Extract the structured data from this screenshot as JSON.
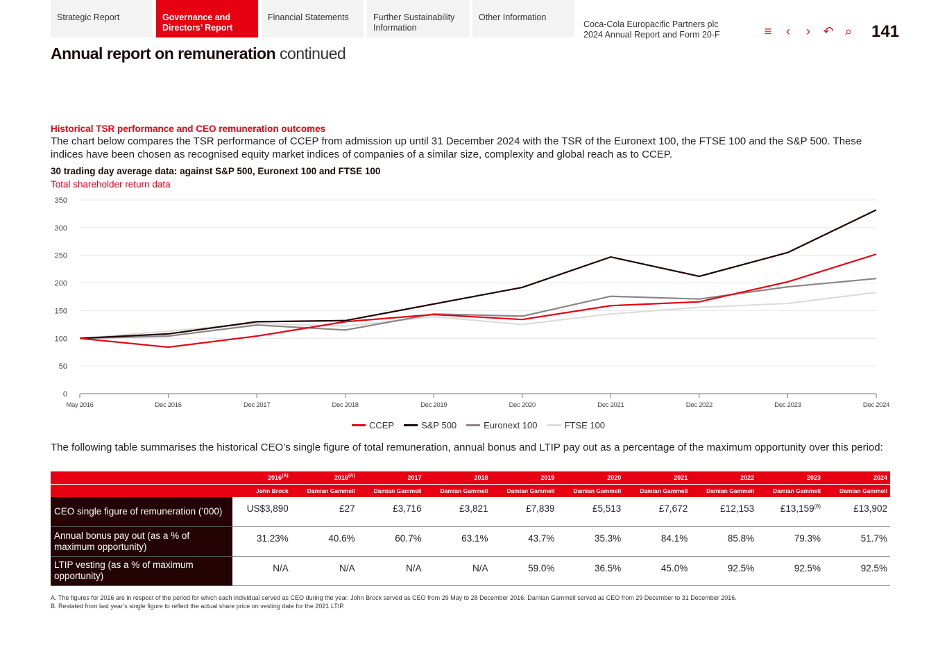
{
  "nav": {
    "tabs": [
      {
        "label": "Strategic Report",
        "active": false
      },
      {
        "label": "Governance and Directors’ Report",
        "active": true
      },
      {
        "label": "Financial Statements",
        "active": false
      },
      {
        "label": "Further Sustainability Information",
        "active": false
      },
      {
        "label": "Other Information",
        "active": false
      }
    ],
    "company_line1": "Coca-Cola Europacific Partners plc",
    "company_line2": "2024 Annual Report and Form 20-F",
    "icons": [
      "menu-icon",
      "chevron-left-icon",
      "chevron-right-icon",
      "undo-icon",
      "search-icon"
    ],
    "page_number": "141"
  },
  "header": {
    "title_bold": "Annual report on remuneration",
    "title_light": "continued"
  },
  "section": {
    "heading": "Historical TSR performance and CEO remuneration outcomes",
    "intro": "The chart below compares the TSR performance of CCEP from admission up until 31 December 2024 with the TSR of the Euronext 100, the FTSE 100 and the S&P 500. These indices have been chosen as recognised equity market indices of companies of a similar size, complexity and global reach as to CCEP."
  },
  "colors": {
    "accent": "#e60012",
    "dark": "#230303"
  },
  "chart_data": {
    "type": "line",
    "title": "30 trading day average data: against S&P 500, Euronext 100 and FTSE 100",
    "subtitle": "Total shareholder return data",
    "categories": [
      "May 2016",
      "Dec 2016",
      "Dec 2017",
      "Dec 2018",
      "Dec 2019",
      "Dec 2020",
      "Dec 2021",
      "Dec 2022",
      "Dec 2023",
      "Dec 2024"
    ],
    "ylim": [
      0,
      350
    ],
    "yticks": [
      0,
      50,
      100,
      150,
      200,
      250,
      300,
      350
    ],
    "grid": true,
    "legend": "bottom",
    "series": [
      {
        "name": "CCEP",
        "color": "#e60012",
        "values": [
          100,
          84,
          104,
          130,
          143,
          134,
          159,
          166,
          202,
          252
        ]
      },
      {
        "name": "S&P 500",
        "color": "#1e0505",
        "values": [
          100,
          108,
          130,
          132,
          162,
          192,
          247,
          212,
          255,
          332
        ]
      },
      {
        "name": "Euronext 100",
        "color": "#8c8484",
        "values": [
          100,
          104,
          124,
          115,
          144,
          140,
          176,
          171,
          193,
          208
        ]
      },
      {
        "name": "FTSE 100",
        "color": "#dcdcdc",
        "values": [
          100,
          113,
          127,
          122,
          139,
          125,
          144,
          156,
          163,
          183
        ]
      }
    ]
  },
  "table": {
    "intro": "The following table summarises the historical CEO’s single figure of total remuneration, annual bonus and LTIP pay out as a percentage of the maximum opportunity over this period:",
    "columns": [
      {
        "year": "2016",
        "note": "(A)",
        "ceo": "John Brock"
      },
      {
        "year": "2016",
        "note": "(A)",
        "ceo": "Damian Gammell"
      },
      {
        "year": "2017",
        "note": "",
        "ceo": "Damian Gammell"
      },
      {
        "year": "2018",
        "note": "",
        "ceo": "Damian Gammell"
      },
      {
        "year": "2019",
        "note": "",
        "ceo": "Damian Gammell"
      },
      {
        "year": "2020",
        "note": "",
        "ceo": "Damian Gammell"
      },
      {
        "year": "2021",
        "note": "",
        "ceo": "Damian Gammell"
      },
      {
        "year": "2022",
        "note": "",
        "ceo": "Damian Gammell"
      },
      {
        "year": "2023",
        "note": "",
        "ceo": "Damian Gammell"
      },
      {
        "year": "2024",
        "note": "",
        "ceo": "Damian Gammell"
      }
    ],
    "rows": [
      {
        "label": "CEO single figure of remuneration (’000)",
        "cells": [
          {
            "v": "US$3,890"
          },
          {
            "v": "£27"
          },
          {
            "v": "£3,716"
          },
          {
            "v": "£3,821"
          },
          {
            "v": "£7,839"
          },
          {
            "v": "£5,513"
          },
          {
            "v": "£7,672"
          },
          {
            "v": "£12,153"
          },
          {
            "v": "£13,159",
            "note": "(B)"
          },
          {
            "v": "£13,902"
          }
        ]
      },
      {
        "label": "Annual bonus pay out (as a % of maximum opportunity)",
        "cells": [
          {
            "v": "31.23%"
          },
          {
            "v": "40.6%"
          },
          {
            "v": "60.7%"
          },
          {
            "v": "63.1%"
          },
          {
            "v": "43.7%"
          },
          {
            "v": "35.3%"
          },
          {
            "v": "84.1%"
          },
          {
            "v": "85.8%"
          },
          {
            "v": "79.3%"
          },
          {
            "v": "51.7%"
          }
        ]
      },
      {
        "label": "LTIP vesting (as a % of maximum opportunity)",
        "cells": [
          {
            "v": "N/A"
          },
          {
            "v": "N/A"
          },
          {
            "v": "N/A"
          },
          {
            "v": "N/A"
          },
          {
            "v": "59.0%"
          },
          {
            "v": "36.5%"
          },
          {
            "v": "45.0%"
          },
          {
            "v": "92.5%"
          },
          {
            "v": "92.5%"
          },
          {
            "v": "92.5%"
          }
        ]
      }
    ]
  },
  "notes": [
    "A.  The figures for 2016 are in respect of the period for which each individual served as CEO during the year. John Brock served as CEO from 29 May to 28 December 2016. Damian Gammell served as CEO from 29 December to 31 December 2016.",
    "B.  Restated from last year’s single figure to reflect the actual share price on vesting date for the 2021 LTIP."
  ]
}
